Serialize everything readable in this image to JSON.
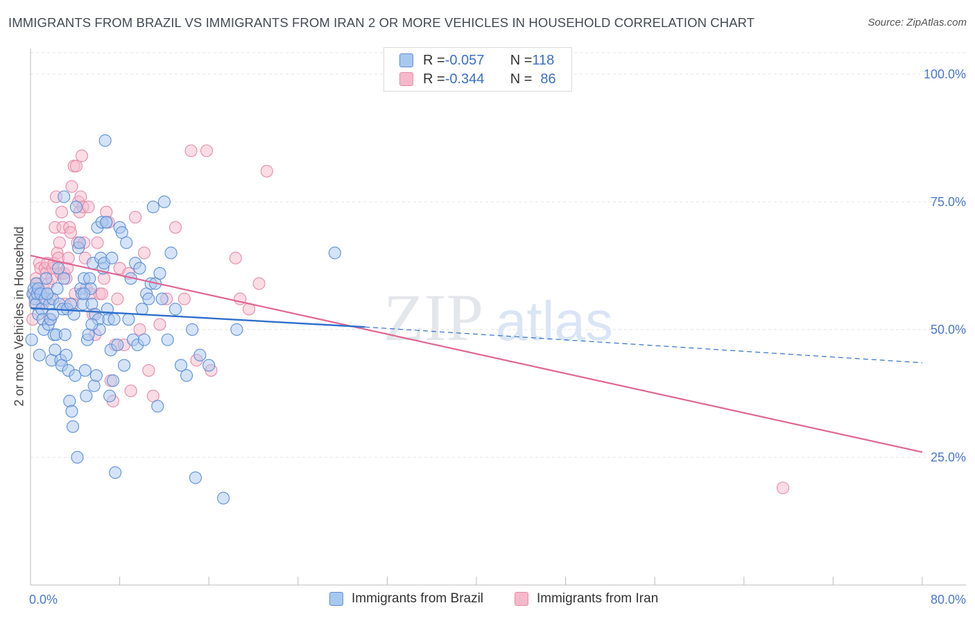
{
  "header": {
    "title": "IMMIGRANTS FROM BRAZIL VS IMMIGRANTS FROM IRAN 2 OR MORE VEHICLES IN HOUSEHOLD CORRELATION CHART",
    "source": "Source: ZipAtlas.com"
  },
  "watermark": {
    "zip": "ZIP",
    "atlas": "atlas"
  },
  "legend": {
    "brazil": {
      "r_label": "R = ",
      "r_value": "-0.057",
      "n_label": "N = ",
      "n_value": "118"
    },
    "iran": {
      "r_label": "R = ",
      "r_value": "-0.344",
      "n_label": "N = ",
      "n_value": "86"
    }
  },
  "colors": {
    "brazil_fill": "#a9c8f0",
    "brazil_stroke": "#5b8fd6",
    "brazil_line": "#2f6fcc",
    "iran_fill": "#f6b9cc",
    "iran_stroke": "#e58aa8",
    "iran_line": "#e06592"
  },
  "chart_data": {
    "type": "scatter",
    "title": "IMMIGRANTS FROM BRAZIL VS IMMIGRANTS FROM IRAN 2 OR MORE VEHICLES IN HOUSEHOLD CORRELATION CHART",
    "xlabel": "",
    "ylabel": "2 or more Vehicles in Household",
    "xlim": [
      0,
      80
    ],
    "ylim": [
      0,
      105
    ],
    "x_tick_labels": [
      "0.0%",
      "80.0%"
    ],
    "y_ticks": [
      25,
      50,
      75,
      100
    ],
    "y_tick_labels": [
      "25.0%",
      "50.0%",
      "75.0%",
      "100.0%"
    ],
    "legend_position": "top-center",
    "series": [
      {
        "name": "Immigrants from Brazil",
        "r": -0.057,
        "n": 118,
        "trend": {
          "x": [
            0,
            30
          ],
          "y": [
            54.2,
            50.5
          ]
        },
        "trend_extension": {
          "x": [
            30,
            80
          ],
          "y": [
            50.5,
            43.5
          ]
        },
        "points": [
          [
            0.1,
            48
          ],
          [
            0.2,
            57
          ],
          [
            0.3,
            58
          ],
          [
            0.4,
            56
          ],
          [
            0.5,
            55
          ],
          [
            0.5,
            59
          ],
          [
            0.6,
            57
          ],
          [
            0.7,
            53
          ],
          [
            0.7,
            58
          ],
          [
            0.8,
            45
          ],
          [
            0.9,
            57
          ],
          [
            1.0,
            54
          ],
          [
            1.1,
            52
          ],
          [
            1.2,
            50
          ],
          [
            1.3,
            56
          ],
          [
            1.4,
            60
          ],
          [
            1.5,
            57
          ],
          [
            1.6,
            51
          ],
          [
            1.7,
            55
          ],
          [
            1.8,
            52
          ],
          [
            1.9,
            44
          ],
          [
            2.0,
            56
          ],
          [
            2.1,
            49
          ],
          [
            2.2,
            46
          ],
          [
            2.3,
            49
          ],
          [
            2.4,
            58
          ],
          [
            2.5,
            62
          ],
          [
            2.6,
            55
          ],
          [
            2.7,
            44
          ],
          [
            2.8,
            43
          ],
          [
            2.9,
            54
          ],
          [
            3.0,
            76
          ],
          [
            3.1,
            49
          ],
          [
            3.2,
            45
          ],
          [
            3.3,
            54
          ],
          [
            3.4,
            42
          ],
          [
            3.5,
            36
          ],
          [
            3.6,
            55
          ],
          [
            3.7,
            34
          ],
          [
            3.8,
            31
          ],
          [
            3.9,
            53
          ],
          [
            4.0,
            41
          ],
          [
            4.1,
            74
          ],
          [
            4.2,
            25
          ],
          [
            4.3,
            66
          ],
          [
            4.4,
            67
          ],
          [
            4.5,
            58
          ],
          [
            4.6,
            57
          ],
          [
            4.7,
            55
          ],
          [
            4.8,
            60
          ],
          [
            4.9,
            42
          ],
          [
            5.0,
            37
          ],
          [
            5.1,
            48
          ],
          [
            5.2,
            49
          ],
          [
            5.3,
            60
          ],
          [
            5.4,
            58
          ],
          [
            5.5,
            55
          ],
          [
            5.6,
            63
          ],
          [
            5.7,
            39
          ],
          [
            5.8,
            53
          ],
          [
            5.9,
            41
          ],
          [
            6.0,
            70
          ],
          [
            6.1,
            52
          ],
          [
            6.2,
            50
          ],
          [
            6.3,
            64
          ],
          [
            6.4,
            71
          ],
          [
            6.5,
            62
          ],
          [
            6.6,
            63
          ],
          [
            6.7,
            87
          ],
          [
            6.8,
            71
          ],
          [
            6.9,
            54
          ],
          [
            7.0,
            52
          ],
          [
            7.1,
            37
          ],
          [
            7.2,
            46
          ],
          [
            7.3,
            64
          ],
          [
            7.4,
            40
          ],
          [
            7.5,
            52
          ],
          [
            7.6,
            22
          ],
          [
            7.8,
            47
          ],
          [
            8.0,
            70
          ],
          [
            8.2,
            69
          ],
          [
            8.4,
            43
          ],
          [
            8.6,
            67
          ],
          [
            8.8,
            52
          ],
          [
            9.0,
            60
          ],
          [
            9.2,
            48
          ],
          [
            9.4,
            63
          ],
          [
            9.6,
            47
          ],
          [
            9.8,
            62
          ],
          [
            10.0,
            54
          ],
          [
            10.2,
            48
          ],
          [
            10.4,
            57
          ],
          [
            10.6,
            56
          ],
          [
            10.8,
            59
          ],
          [
            11.0,
            74
          ],
          [
            11.2,
            59
          ],
          [
            11.4,
            35
          ],
          [
            11.6,
            61
          ],
          [
            11.8,
            56
          ],
          [
            12.0,
            75
          ],
          [
            12.3,
            48
          ],
          [
            12.6,
            65
          ],
          [
            13.0,
            54
          ],
          [
            13.5,
            43
          ],
          [
            14.0,
            41
          ],
          [
            14.5,
            50
          ],
          [
            14.8,
            21
          ],
          [
            15.2,
            45
          ],
          [
            16.0,
            43
          ],
          [
            17.3,
            17
          ],
          [
            18.5,
            50
          ],
          [
            27.3,
            65
          ],
          [
            3.0,
            60
          ],
          [
            6.8,
            71
          ],
          [
            5.5,
            51
          ],
          [
            4.8,
            57
          ],
          [
            1.5,
            57
          ],
          [
            2.0,
            53
          ]
        ]
      },
      {
        "name": "Immigrants from Iran",
        "r": -0.344,
        "n": 86,
        "trend": {
          "x": [
            0,
            80
          ],
          "y": [
            64.5,
            26
          ]
        },
        "points": [
          [
            0.2,
            52
          ],
          [
            0.3,
            57
          ],
          [
            0.4,
            55
          ],
          [
            0.5,
            60
          ],
          [
            0.6,
            59
          ],
          [
            0.7,
            58
          ],
          [
            0.8,
            63
          ],
          [
            0.9,
            62
          ],
          [
            1.0,
            57
          ],
          [
            1.1,
            55
          ],
          [
            1.2,
            58
          ],
          [
            1.3,
            62
          ],
          [
            1.4,
            61
          ],
          [
            1.5,
            63
          ],
          [
            1.6,
            59
          ],
          [
            1.7,
            52
          ],
          [
            1.8,
            56
          ],
          [
            1.9,
            60
          ],
          [
            2.0,
            62
          ],
          [
            2.1,
            63
          ],
          [
            2.2,
            70
          ],
          [
            2.3,
            76
          ],
          [
            2.4,
            65
          ],
          [
            2.5,
            64
          ],
          [
            2.6,
            67
          ],
          [
            2.7,
            61
          ],
          [
            2.8,
            73
          ],
          [
            2.9,
            70
          ],
          [
            3.0,
            61
          ],
          [
            3.1,
            55
          ],
          [
            3.2,
            60
          ],
          [
            3.3,
            62
          ],
          [
            3.4,
            64
          ],
          [
            3.5,
            70
          ],
          [
            3.6,
            69
          ],
          [
            3.7,
            78
          ],
          [
            3.8,
            55
          ],
          [
            3.9,
            82
          ],
          [
            4.0,
            57
          ],
          [
            4.1,
            82
          ],
          [
            4.2,
            67
          ],
          [
            4.3,
            75
          ],
          [
            4.4,
            73
          ],
          [
            4.5,
            76
          ],
          [
            4.6,
            84
          ],
          [
            4.7,
            74
          ],
          [
            4.8,
            67
          ],
          [
            4.9,
            64
          ],
          [
            5.0,
            58
          ],
          [
            5.2,
            74
          ],
          [
            5.4,
            57
          ],
          [
            5.6,
            53
          ],
          [
            5.8,
            49
          ],
          [
            6.0,
            67
          ],
          [
            6.2,
            57
          ],
          [
            6.4,
            57
          ],
          [
            6.6,
            60
          ],
          [
            6.8,
            73
          ],
          [
            7.0,
            71
          ],
          [
            7.2,
            40
          ],
          [
            7.4,
            36
          ],
          [
            7.6,
            47
          ],
          [
            7.8,
            56
          ],
          [
            8.0,
            62
          ],
          [
            8.4,
            47
          ],
          [
            8.8,
            61
          ],
          [
            9.0,
            38
          ],
          [
            9.4,
            72
          ],
          [
            9.8,
            50
          ],
          [
            10.2,
            65
          ],
          [
            10.6,
            42
          ],
          [
            11.0,
            37
          ],
          [
            11.6,
            51
          ],
          [
            12.2,
            56
          ],
          [
            13.0,
            70
          ],
          [
            13.8,
            56
          ],
          [
            14.4,
            85
          ],
          [
            14.9,
            44
          ],
          [
            15.8,
            85
          ],
          [
            16.2,
            42
          ],
          [
            18.4,
            64
          ],
          [
            18.8,
            56
          ],
          [
            19.6,
            54
          ],
          [
            20.5,
            59
          ],
          [
            21.2,
            81
          ],
          [
            67.5,
            19
          ]
        ]
      }
    ]
  },
  "bottom_legend": {
    "brazil_label": "Immigrants from Brazil",
    "iran_label": "Immigrants from Iran"
  }
}
